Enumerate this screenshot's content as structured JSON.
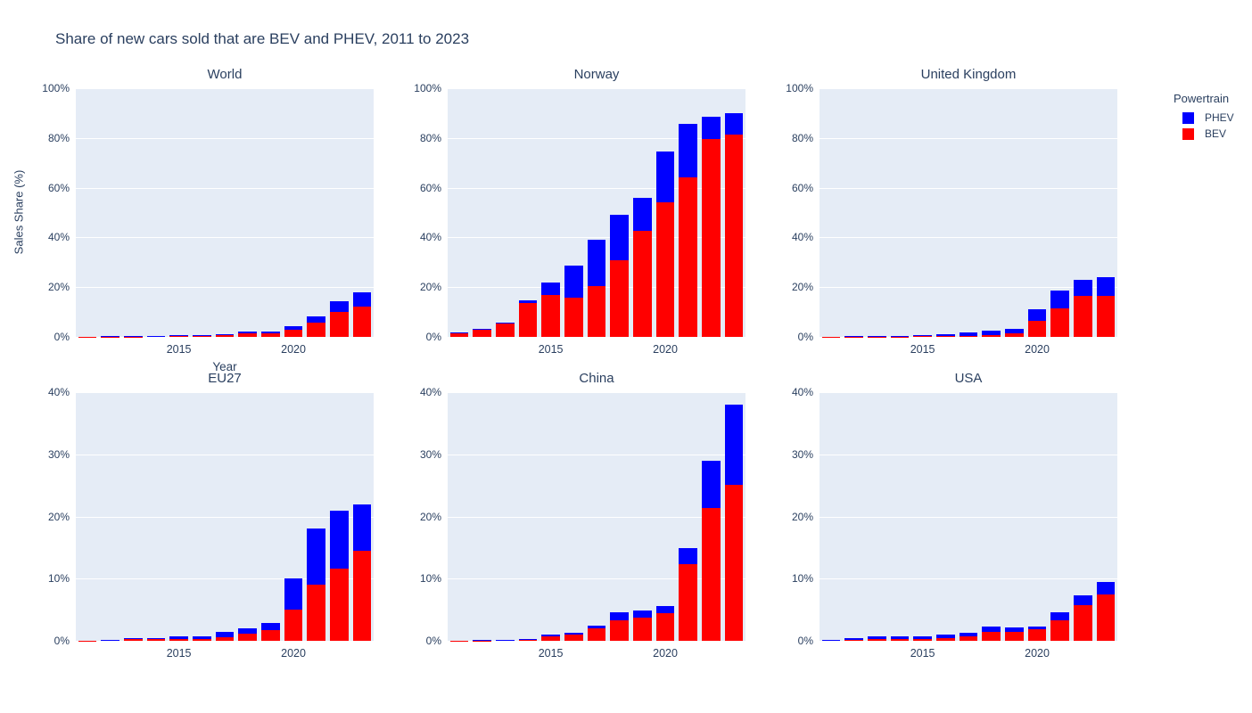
{
  "title": "Share of new cars sold that are BEV and PHEV, 2011 to 2023",
  "colors": {
    "bev": "#ff0000",
    "phev": "#0000ff",
    "plot_background": "#e5ecf6",
    "grid": "#ffffff",
    "text": "#2a3f5f"
  },
  "axes": {
    "y_title": "Sales Share (%)",
    "x_title": "Year",
    "x_ticks": [
      {
        "v": 2015,
        "label": "2015"
      },
      {
        "v": 2020,
        "label": "2020"
      }
    ]
  },
  "legend": {
    "title": "Powertrain",
    "items": [
      {
        "label": "PHEV",
        "color": "#0000ff"
      },
      {
        "label": "BEV",
        "color": "#ff0000"
      }
    ]
  },
  "chart_data": [
    {
      "type": "bar",
      "stacked": true,
      "title": "World",
      "years": [
        2011,
        2012,
        2013,
        2014,
        2015,
        2016,
        2017,
        2018,
        2019,
        2020,
        2021,
        2022,
        2023
      ],
      "xlim": [
        2010.5,
        2023.5
      ],
      "ylim": [
        0,
        100
      ],
      "yticks": [
        {
          "v": 0,
          "label": "0%"
        },
        {
          "v": 20,
          "label": "20%"
        },
        {
          "v": 40,
          "label": "40%"
        },
        {
          "v": 60,
          "label": "60%"
        },
        {
          "v": 80,
          "label": "80%"
        },
        {
          "v": 100,
          "label": "100%"
        }
      ],
      "series": [
        {
          "name": "BEV",
          "color": "#ff0000",
          "values": [
            0.05,
            0.08,
            0.15,
            0.25,
            0.3,
            0.45,
            0.7,
            1.4,
            1.4,
            2.7,
            5.8,
            10.2,
            12.3
          ]
        },
        {
          "name": "PHEV",
          "color": "#0000ff",
          "values": [
            0.02,
            0.12,
            0.1,
            0.15,
            0.25,
            0.3,
            0.45,
            0.7,
            0.8,
            1.5,
            2.6,
            4.3,
            5.5
          ]
        }
      ]
    },
    {
      "type": "bar",
      "stacked": true,
      "title": "Norway",
      "years": [
        2011,
        2012,
        2013,
        2014,
        2015,
        2016,
        2017,
        2018,
        2019,
        2020,
        2021,
        2022,
        2023
      ],
      "xlim": [
        2010.5,
        2023.5
      ],
      "ylim": [
        0,
        100
      ],
      "yticks": [
        {
          "v": 0,
          "label": "0%"
        },
        {
          "v": 20,
          "label": "20%"
        },
        {
          "v": 40,
          "label": "40%"
        },
        {
          "v": 60,
          "label": "60%"
        },
        {
          "v": 80,
          "label": "80%"
        },
        {
          "v": 100,
          "label": "100%"
        }
      ],
      "series": [
        {
          "name": "BEV",
          "color": "#ff0000",
          "values": [
            1.6,
            2.9,
            5.5,
            13.7,
            17.0,
            15.7,
            20.5,
            31.0,
            42.5,
            54.0,
            64.0,
            79.5,
            81.5
          ]
        },
        {
          "name": "PHEV",
          "color": "#0000ff",
          "values": [
            0.1,
            0.4,
            0.3,
            1.0,
            4.8,
            12.9,
            18.5,
            18.2,
            13.5,
            20.6,
            21.7,
            9.0,
            8.5
          ]
        }
      ]
    },
    {
      "type": "bar",
      "stacked": true,
      "title": "United Kingdom",
      "years": [
        2011,
        2012,
        2013,
        2014,
        2015,
        2016,
        2017,
        2018,
        2019,
        2020,
        2021,
        2022,
        2023
      ],
      "xlim": [
        2010.5,
        2023.5
      ],
      "ylim": [
        0,
        100
      ],
      "yticks": [
        {
          "v": 0,
          "label": "0%"
        },
        {
          "v": 20,
          "label": "20%"
        },
        {
          "v": 40,
          "label": "40%"
        },
        {
          "v": 60,
          "label": "60%"
        },
        {
          "v": 80,
          "label": "80%"
        },
        {
          "v": 100,
          "label": "100%"
        }
      ],
      "series": [
        {
          "name": "BEV",
          "color": "#ff0000",
          "values": [
            0.03,
            0.1,
            0.1,
            0.15,
            0.35,
            0.4,
            0.5,
            0.7,
            1.6,
            6.5,
            11.5,
            16.5,
            16.5
          ]
        },
        {
          "name": "PHEV",
          "color": "#0000ff",
          "values": [
            0.02,
            0.1,
            0.15,
            0.25,
            0.55,
            0.8,
            1.3,
            1.8,
            1.5,
            4.5,
            7.0,
            6.5,
            7.5
          ]
        }
      ]
    },
    {
      "type": "bar",
      "stacked": true,
      "title": "EU27",
      "years": [
        2011,
        2012,
        2013,
        2014,
        2015,
        2016,
        2017,
        2018,
        2019,
        2020,
        2021,
        2022,
        2023
      ],
      "xlim": [
        2010.5,
        2023.5
      ],
      "ylim": [
        0,
        40
      ],
      "yticks": [
        {
          "v": 0,
          "label": "0%"
        },
        {
          "v": 10,
          "label": "10%"
        },
        {
          "v": 20,
          "label": "20%"
        },
        {
          "v": 30,
          "label": "30%"
        },
        {
          "v": 40,
          "label": "40%"
        }
      ],
      "series": [
        {
          "name": "BEV",
          "color": "#ff0000",
          "values": [
            0.05,
            0.15,
            0.25,
            0.25,
            0.35,
            0.35,
            0.6,
            1.1,
            1.7,
            5.0,
            9.0,
            11.6,
            14.5
          ]
        },
        {
          "name": "PHEV",
          "color": "#0000ff",
          "values": [
            0.01,
            0.05,
            0.15,
            0.2,
            0.3,
            0.35,
            0.8,
            0.9,
            1.1,
            5.0,
            9.0,
            9.3,
            7.4
          ]
        }
      ]
    },
    {
      "type": "bar",
      "stacked": true,
      "title": "China",
      "years": [
        2011,
        2012,
        2013,
        2014,
        2015,
        2016,
        2017,
        2018,
        2019,
        2020,
        2021,
        2022,
        2023
      ],
      "xlim": [
        2010.5,
        2023.5
      ],
      "ylim": [
        0,
        40
      ],
      "yticks": [
        {
          "v": 0,
          "label": "0%"
        },
        {
          "v": 10,
          "label": "10%"
        },
        {
          "v": 20,
          "label": "20%"
        },
        {
          "v": 30,
          "label": "30%"
        },
        {
          "v": 40,
          "label": "40%"
        }
      ],
      "series": [
        {
          "name": "BEV",
          "color": "#ff0000",
          "values": [
            0.06,
            0.05,
            0.1,
            0.25,
            0.75,
            1.0,
            2.0,
            3.3,
            3.8,
            4.5,
            12.3,
            21.3,
            25.1
          ]
        },
        {
          "name": "PHEV",
          "color": "#0000ff",
          "values": [
            0.0,
            0.05,
            0.02,
            0.1,
            0.25,
            0.3,
            0.4,
            1.3,
            1.1,
            1.1,
            2.6,
            7.6,
            12.9
          ]
        }
      ]
    },
    {
      "type": "bar",
      "stacked": true,
      "title": "USA",
      "years": [
        2011,
        2012,
        2013,
        2014,
        2015,
        2016,
        2017,
        2018,
        2019,
        2020,
        2021,
        2022,
        2023
      ],
      "xlim": [
        2010.5,
        2023.5
      ],
      "ylim": [
        0,
        40
      ],
      "yticks": [
        {
          "v": 0,
          "label": "0%"
        },
        {
          "v": 10,
          "label": "10%"
        },
        {
          "v": 20,
          "label": "20%"
        },
        {
          "v": 30,
          "label": "30%"
        },
        {
          "v": 40,
          "label": "40%"
        }
      ],
      "series": [
        {
          "name": "BEV",
          "color": "#ff0000",
          "values": [
            0.1,
            0.2,
            0.35,
            0.35,
            0.3,
            0.5,
            0.65,
            1.5,
            1.5,
            1.8,
            3.3,
            5.8,
            7.4
          ]
        },
        {
          "name": "PHEV",
          "color": "#0000ff",
          "values": [
            0.05,
            0.25,
            0.3,
            0.4,
            0.35,
            0.45,
            0.7,
            0.8,
            0.6,
            0.5,
            1.3,
            1.5,
            2.0
          ]
        }
      ]
    }
  ]
}
